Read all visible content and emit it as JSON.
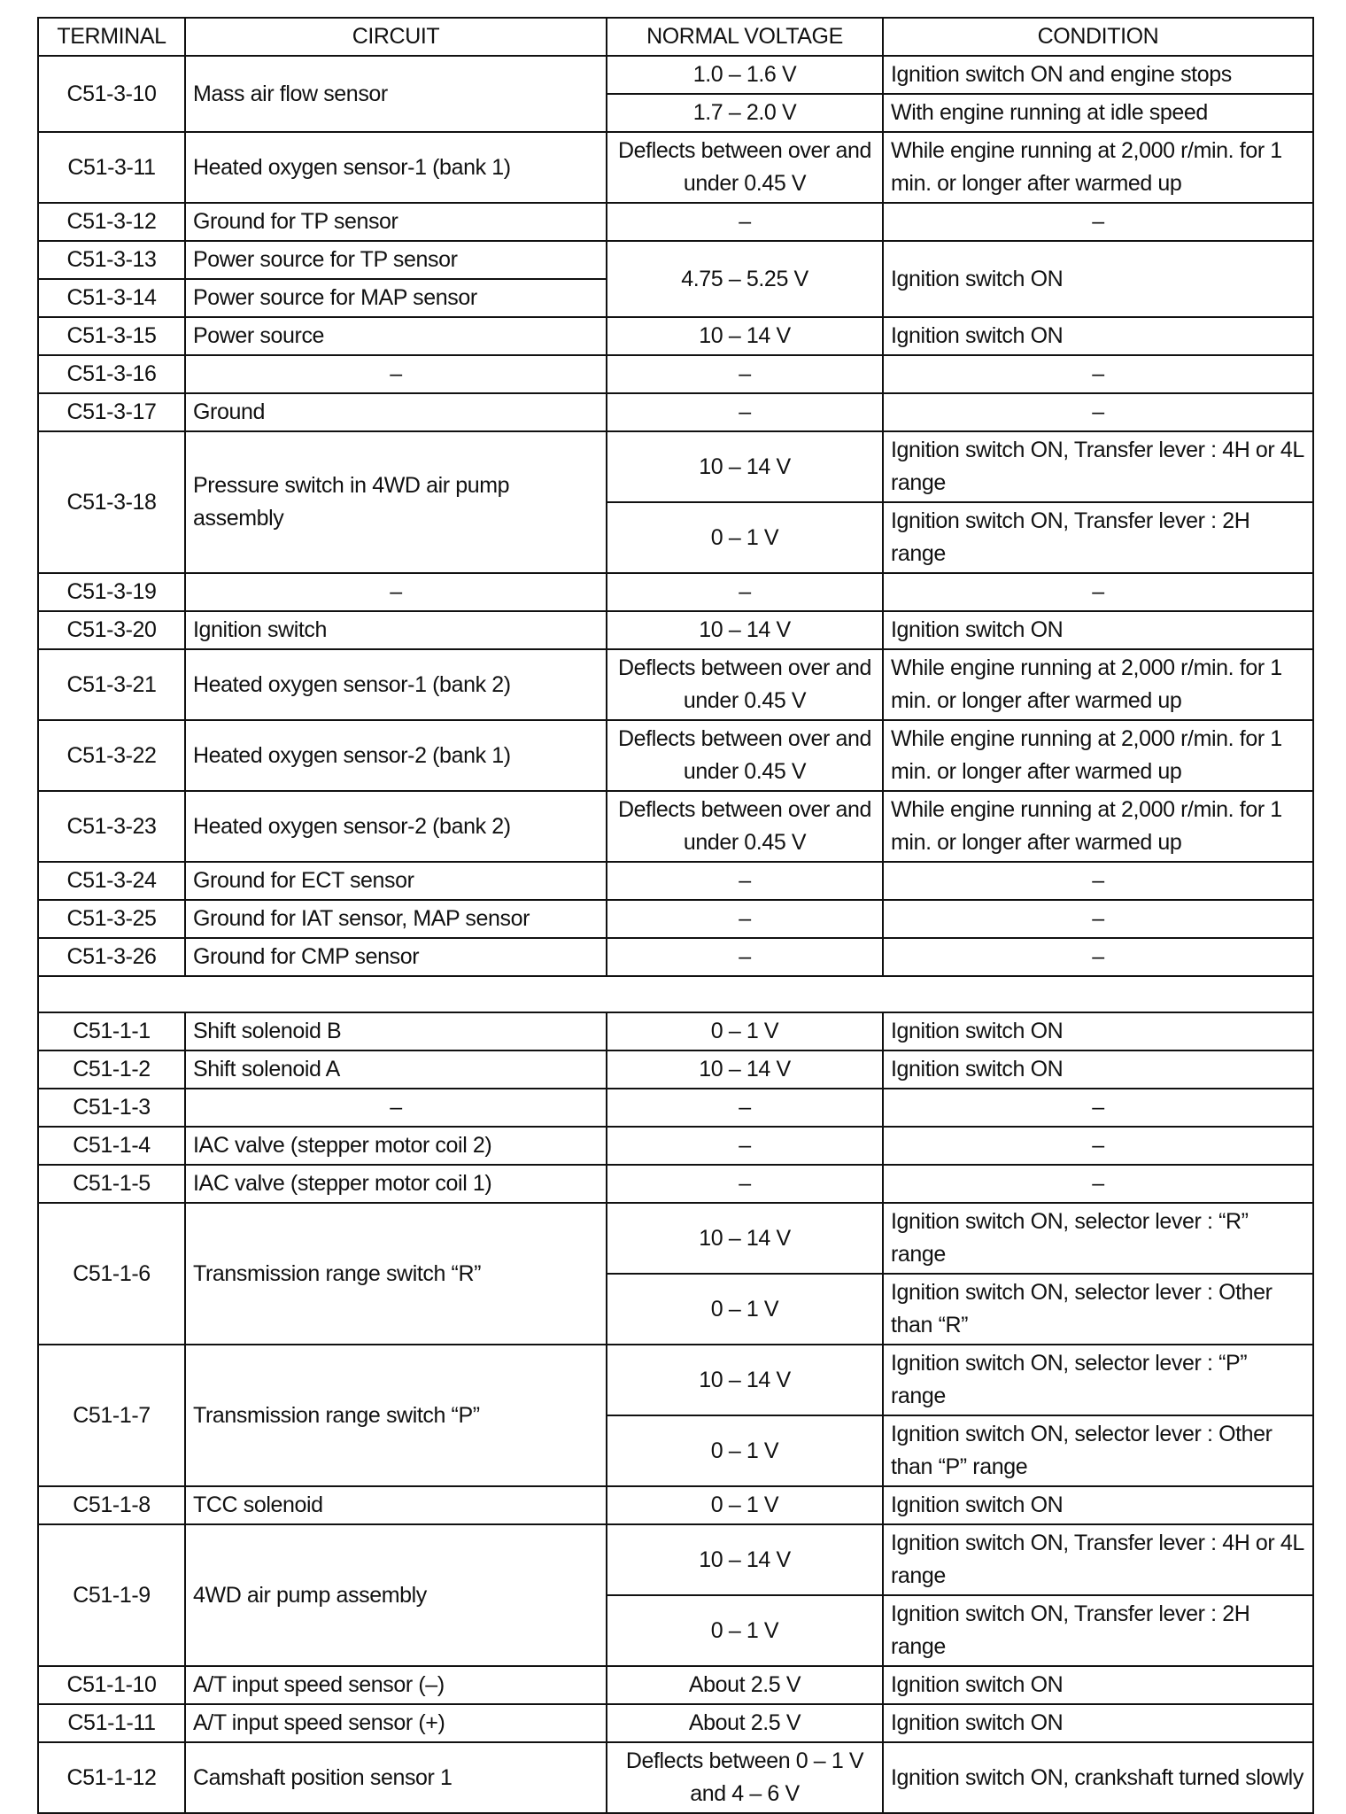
{
  "headers": [
    "TERMINAL",
    "CIRCUIT",
    "NORMAL VOLTAGE",
    "CONDITION"
  ],
  "blocks": [
    {
      "terminals": [
        {
          "terminal": "C51-3-10",
          "circuit": "Mass air flow sensor"
        }
      ],
      "readings": [
        {
          "voltage": "1.0 – 1.6 V",
          "condition": "Ignition switch ON and engine stops"
        },
        {
          "voltage": "1.7 – 2.0 V",
          "condition": "With engine running at idle speed"
        }
      ]
    },
    {
      "terminals": [
        {
          "terminal": "C51-3-11",
          "circuit": "Heated oxygen sensor-1 (bank 1)"
        }
      ],
      "readings": [
        {
          "voltage": "Deflects between over and under 0.45 V",
          "condition": "While engine running at 2,000 r/min. for 1 min. or longer after warmed up"
        }
      ]
    },
    {
      "terminals": [
        {
          "terminal": "C51-3-12",
          "circuit": "Ground for TP sensor"
        }
      ],
      "readings": [
        {
          "voltage": "–",
          "condition": "–"
        }
      ]
    },
    {
      "terminals": [
        {
          "terminal": "C51-3-13",
          "circuit": "Power source for TP sensor"
        },
        {
          "terminal": "C51-3-14",
          "circuit": "Power source for MAP sensor"
        }
      ],
      "readings": [
        {
          "voltage": "4.75 – 5.25 V",
          "condition": "Ignition switch ON"
        }
      ]
    },
    {
      "terminals": [
        {
          "terminal": "C51-3-15",
          "circuit": "Power source"
        }
      ],
      "readings": [
        {
          "voltage": "10 – 14 V",
          "condition": "Ignition switch ON"
        }
      ]
    },
    {
      "terminals": [
        {
          "terminal": "C51-3-16",
          "circuit": "–"
        }
      ],
      "readings": [
        {
          "voltage": "–",
          "condition": "–"
        }
      ]
    },
    {
      "terminals": [
        {
          "terminal": "C51-3-17",
          "circuit": "Ground"
        }
      ],
      "readings": [
        {
          "voltage": "–",
          "condition": "–"
        }
      ]
    },
    {
      "terminals": [
        {
          "terminal": "C51-3-18",
          "circuit": "Pressure switch in 4WD air pump assembly"
        }
      ],
      "readings": [
        {
          "voltage": "10 – 14 V",
          "condition": "Ignition switch ON, Transfer lever : 4H or 4L range"
        },
        {
          "voltage": "0 – 1 V",
          "condition": "Ignition switch ON, Transfer lever : 2H range"
        }
      ]
    },
    {
      "terminals": [
        {
          "terminal": "C51-3-19",
          "circuit": "–"
        }
      ],
      "readings": [
        {
          "voltage": "–",
          "condition": "–"
        }
      ]
    },
    {
      "terminals": [
        {
          "terminal": "C51-3-20",
          "circuit": "Ignition switch"
        }
      ],
      "readings": [
        {
          "voltage": "10 – 14 V",
          "condition": "Ignition switch ON"
        }
      ]
    },
    {
      "terminals": [
        {
          "terminal": "C51-3-21",
          "circuit": "Heated oxygen sensor-1 (bank 2)"
        }
      ],
      "readings": [
        {
          "voltage": "Deflects between over and under 0.45 V",
          "condition": "While engine running at 2,000 r/min. for 1 min. or longer after warmed up"
        }
      ]
    },
    {
      "terminals": [
        {
          "terminal": "C51-3-22",
          "circuit": "Heated oxygen sensor-2 (bank 1)"
        }
      ],
      "readings": [
        {
          "voltage": "Deflects between over and under 0.45 V",
          "condition": "While engine running at 2,000 r/min. for 1 min. or longer after warmed up"
        }
      ]
    },
    {
      "terminals": [
        {
          "terminal": "C51-3-23",
          "circuit": "Heated oxygen sensor-2 (bank 2)"
        }
      ],
      "readings": [
        {
          "voltage": "Deflects between over and under 0.45 V",
          "condition": "While engine running at 2,000 r/min. for 1 min. or longer after warmed up"
        }
      ]
    },
    {
      "terminals": [
        {
          "terminal": "C51-3-24",
          "circuit": "Ground for ECT sensor"
        }
      ],
      "readings": [
        {
          "voltage": "–",
          "condition": "–"
        }
      ]
    },
    {
      "terminals": [
        {
          "terminal": "C51-3-25",
          "circuit": "Ground for IAT sensor, MAP sensor"
        }
      ],
      "readings": [
        {
          "voltage": "–",
          "condition": "–"
        }
      ]
    },
    {
      "terminals": [
        {
          "terminal": "C51-3-26",
          "circuit": "Ground for CMP sensor"
        }
      ],
      "readings": [
        {
          "voltage": "–",
          "condition": "–"
        }
      ]
    },
    {
      "separator": true
    },
    {
      "terminals": [
        {
          "terminal": "C51-1-1",
          "circuit": "Shift solenoid B"
        }
      ],
      "readings": [
        {
          "voltage": "0 – 1 V",
          "condition": "Ignition switch ON"
        }
      ]
    },
    {
      "terminals": [
        {
          "terminal": "C51-1-2",
          "circuit": "Shift solenoid A"
        }
      ],
      "readings": [
        {
          "voltage": "10 – 14 V",
          "condition": "Ignition switch ON"
        }
      ]
    },
    {
      "terminals": [
        {
          "terminal": "C51-1-3",
          "circuit": "–"
        }
      ],
      "readings": [
        {
          "voltage": "–",
          "condition": "–"
        }
      ]
    },
    {
      "terminals": [
        {
          "terminal": "C51-1-4",
          "circuit": "IAC valve (stepper motor coil 2)"
        }
      ],
      "readings": [
        {
          "voltage": "–",
          "condition": "–"
        }
      ]
    },
    {
      "terminals": [
        {
          "terminal": "C51-1-5",
          "circuit": "IAC valve (stepper motor coil 1)"
        }
      ],
      "readings": [
        {
          "voltage": "–",
          "condition": "–"
        }
      ]
    },
    {
      "terminals": [
        {
          "terminal": "C51-1-6",
          "circuit": "Transmission range switch “R”"
        }
      ],
      "readings": [
        {
          "voltage": "10 – 14 V",
          "condition": "Ignition switch ON, selector lever : “R” range"
        },
        {
          "voltage": "0 – 1 V",
          "condition": "Ignition switch ON, selector lever : Other than “R”"
        }
      ]
    },
    {
      "terminals": [
        {
          "terminal": "C51-1-7",
          "circuit": "Transmission range switch “P”"
        }
      ],
      "readings": [
        {
          "voltage": "10 – 14 V",
          "condition": "Ignition switch ON, selector lever : “P” range"
        },
        {
          "voltage": "0 – 1 V",
          "condition": "Ignition switch ON, selector lever : Other than “P” range"
        }
      ]
    },
    {
      "terminals": [
        {
          "terminal": "C51-1-8",
          "circuit": "TCC solenoid"
        }
      ],
      "readings": [
        {
          "voltage": "0 – 1 V",
          "condition": "Ignition switch ON"
        }
      ]
    },
    {
      "terminals": [
        {
          "terminal": "C51-1-9",
          "circuit": "4WD air pump assembly"
        }
      ],
      "readings": [
        {
          "voltage": "10 – 14 V",
          "condition": "Ignition switch ON, Transfer lever : 4H or 4L range"
        },
        {
          "voltage": "0 – 1 V",
          "condition": "Ignition switch ON, Transfer lever : 2H range"
        }
      ]
    },
    {
      "terminals": [
        {
          "terminal": "C51-1-10",
          "circuit": "A/T input speed sensor (–)"
        }
      ],
      "readings": [
        {
          "voltage": "About 2.5 V",
          "condition": "Ignition switch ON"
        }
      ]
    },
    {
      "terminals": [
        {
          "terminal": "C51-1-11",
          "circuit": "A/T input speed sensor (+)"
        }
      ],
      "readings": [
        {
          "voltage": "About 2.5 V",
          "condition": "Ignition switch ON"
        }
      ]
    },
    {
      "terminals": [
        {
          "terminal": "C51-1-12",
          "circuit": "Camshaft position sensor 1"
        }
      ],
      "readings": [
        {
          "voltage": "Deflects between 0 – 1 V and 4 – 6 V",
          "condition": "Ignition switch ON, crankshaft turned slowly"
        }
      ]
    }
  ]
}
